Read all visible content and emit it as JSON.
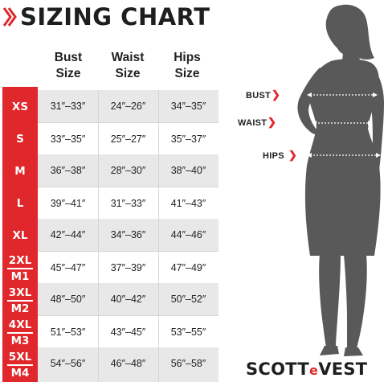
{
  "title": "SIZING CHART",
  "headers": [
    {
      "line1": "Bust",
      "line2": "Size"
    },
    {
      "line1": "Waist",
      "line2": "Size"
    },
    {
      "line1": "Hips",
      "line2": "Size"
    }
  ],
  "rows": [
    {
      "size": "XS",
      "size_alt": "",
      "bust": "31″–33″",
      "waist": "24″–26″",
      "hips": "34″–35″"
    },
    {
      "size": "S",
      "size_alt": "",
      "bust": "33″–35″",
      "waist": "25″–27″",
      "hips": "35″–37″"
    },
    {
      "size": "M",
      "size_alt": "",
      "bust": "36″–38″",
      "waist": "28″–30″",
      "hips": "38″–40″"
    },
    {
      "size": "L",
      "size_alt": "",
      "bust": "39″–41″",
      "waist": "31″–33″",
      "hips": "41″–43″"
    },
    {
      "size": "XL",
      "size_alt": "",
      "bust": "42″–44″",
      "waist": "34″–36″",
      "hips": "44″–46″"
    },
    {
      "size": "2XL",
      "size_alt": "M1",
      "bust": "45″–47″",
      "waist": "37″–39″",
      "hips": "47″–49″"
    },
    {
      "size": "3XL",
      "size_alt": "M2",
      "bust": "48″–50″",
      "waist": "40″–42″",
      "hips": "50″–52″"
    },
    {
      "size": "4XL",
      "size_alt": "M3",
      "bust": "51″–53″",
      "waist": "43″–45″",
      "hips": "53″–55″"
    },
    {
      "size": "5XL",
      "size_alt": "M4",
      "bust": "54″–56″",
      "waist": "46″–48″",
      "hips": "56″–58″"
    }
  ],
  "measurements": {
    "bust": "BUST",
    "waist": "WAIST",
    "hips": "HIPS"
  },
  "brand": {
    "part1": "SCOTT",
    "accent": "e",
    "part2": "VEST"
  },
  "colors": {
    "accent": "#e0272b",
    "silhouette": "#595959",
    "row_shade": "#e8e8e8",
    "text": "#222222"
  }
}
